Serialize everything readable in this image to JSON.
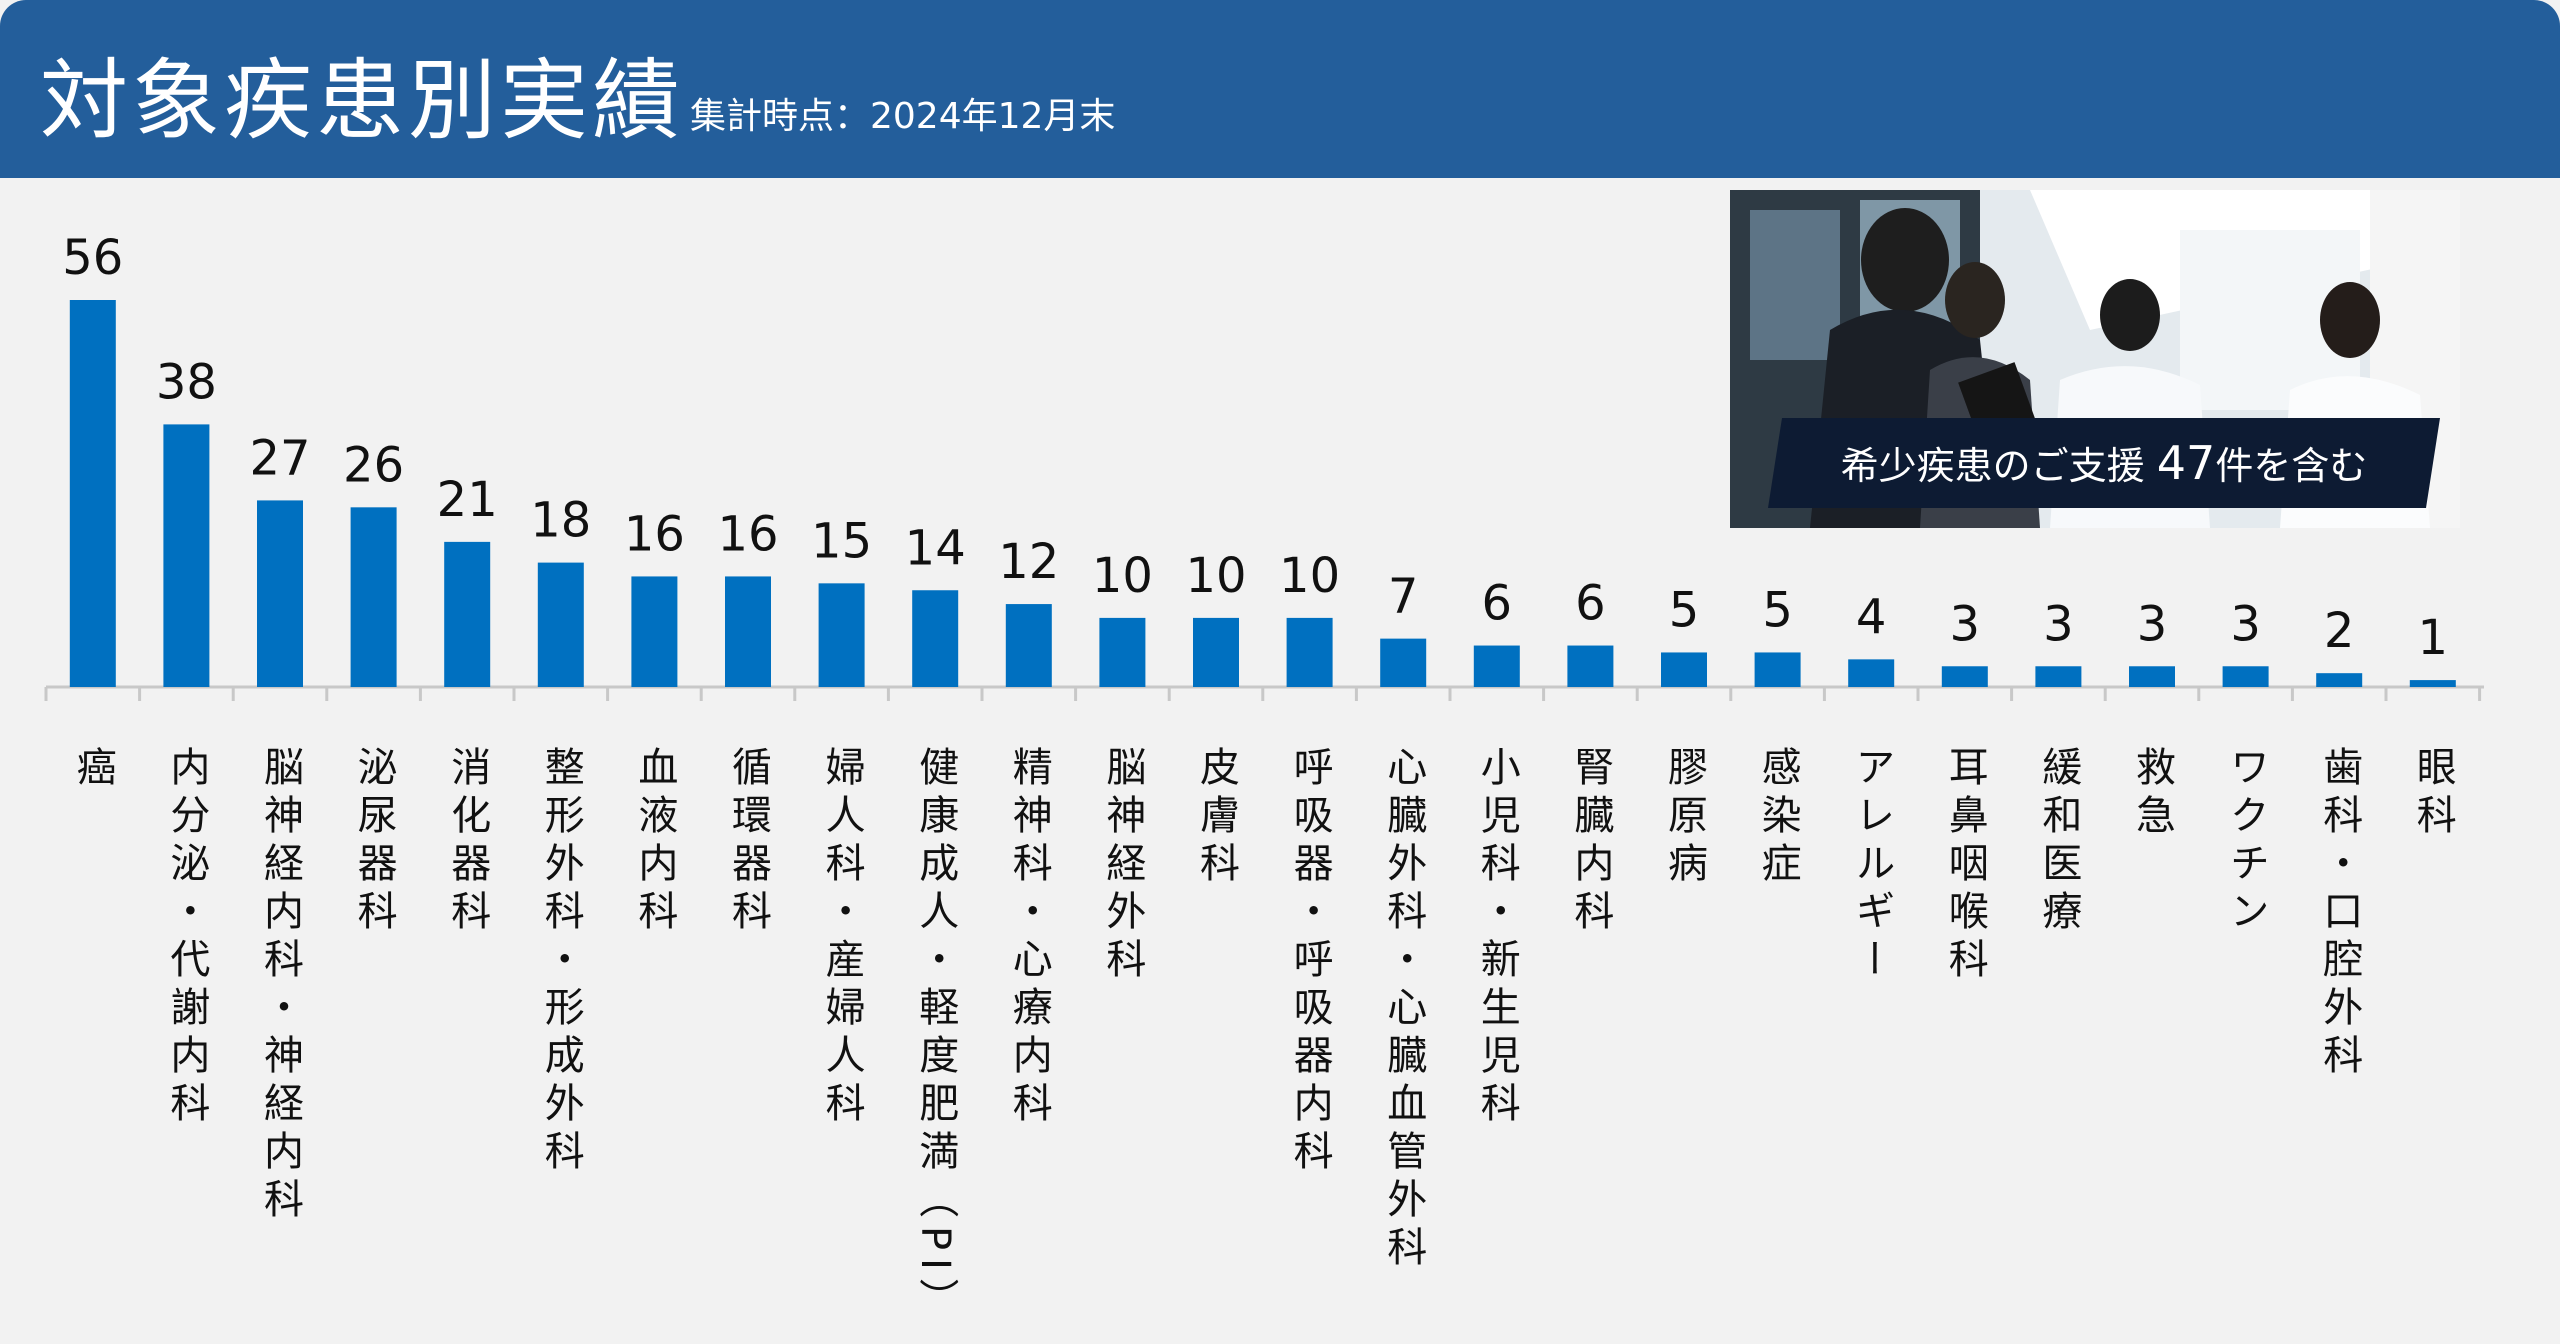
{
  "header": {
    "title": "対象疾患別実績",
    "subtitle": "集計時点：2024年12月末"
  },
  "photo_badge": {
    "prefix": "希少疾患のご支援",
    "count": "47",
    "suffix": "件を含む"
  },
  "colors": {
    "header_bg": "#235e9b",
    "bar": "#0070c0",
    "background": "#f2f2f2",
    "badge_bg": "#0d1b33"
  },
  "chart_data": {
    "type": "bar",
    "categories": [
      "癌",
      "内分泌・代謝内科",
      "脳神経内科・神経内科",
      "泌尿器科",
      "消化器科",
      "整形外科・形成外科",
      "血液内科",
      "循環器科",
      "婦人科・産婦人科",
      "健康成人・軽度肥満（PI）",
      "精神科・心療内科",
      "脳神経外科",
      "皮膚科",
      "呼吸器・呼吸器内科",
      "心臓外科・心臓血管外科",
      "小児科・新生児科",
      "腎臓内科",
      "膠原病",
      "感染症",
      "アレルギー",
      "耳鼻咽喉科",
      "緩和医療",
      "救急",
      "ワクチン",
      "歯科・口腔外科",
      "眼科"
    ],
    "values": [
      56,
      38,
      27,
      26,
      21,
      18,
      16,
      16,
      15,
      14,
      12,
      10,
      10,
      10,
      7,
      6,
      6,
      5,
      5,
      4,
      3,
      3,
      3,
      3,
      2,
      1
    ],
    "value_labels": [
      "56",
      "38",
      "27",
      "26",
      "21",
      "18",
      "16",
      "16",
      "15",
      "14",
      "12",
      "10",
      "10",
      "10",
      "7",
      "6",
      "6",
      "5",
      "5",
      "4",
      "3",
      "3",
      "3",
      "3",
      "2",
      "1"
    ],
    "title": "対象疾患別実績",
    "xlabel": "",
    "ylabel": "",
    "ylim": [
      0,
      56
    ],
    "grid": false,
    "legend": "none"
  }
}
